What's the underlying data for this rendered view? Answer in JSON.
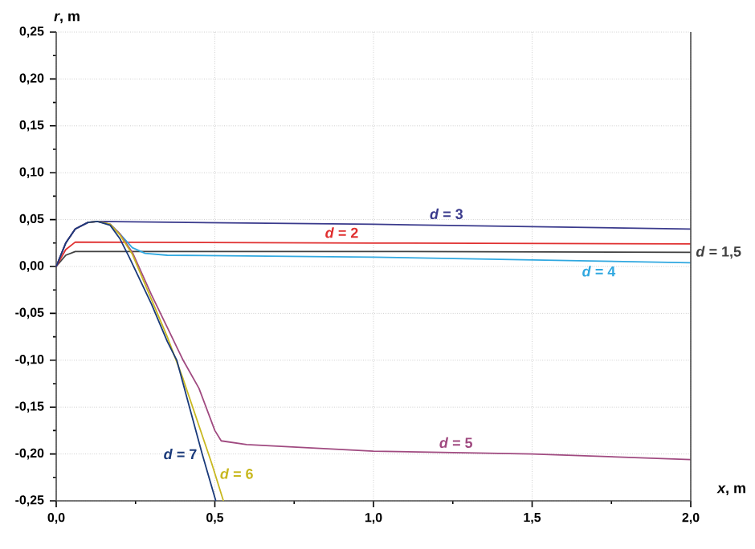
{
  "chart_data": {
    "type": "line",
    "xlabel": "*x*, m",
    "ylabel": "*r*, m",
    "xlim": [
      0,
      2.0
    ],
    "ylim": [
      -0.25,
      0.25
    ],
    "xticks": [
      {
        "value": 0,
        "label": "0,0"
      },
      {
        "value": 0.5,
        "label": "0,5"
      },
      {
        "value": 1.0,
        "label": "1,0"
      },
      {
        "value": 1.5,
        "label": "1,5"
      },
      {
        "value": 2.0,
        "label": "2,0"
      }
    ],
    "yticks": [
      {
        "value": -0.25,
        "label": "-0,25"
      },
      {
        "value": -0.2,
        "label": "-0,20"
      },
      {
        "value": -0.15,
        "label": "-0,15"
      },
      {
        "value": -0.1,
        "label": "-0,10"
      },
      {
        "value": -0.05,
        "label": "-0,05"
      },
      {
        "value": 0,
        "label": "0,00"
      },
      {
        "value": 0.05,
        "label": "0,05"
      },
      {
        "value": 0.1,
        "label": "0,10"
      },
      {
        "value": 0.15,
        "label": "0,15"
      },
      {
        "value": 0.2,
        "label": "0,20"
      },
      {
        "value": 0.25,
        "label": "0,25"
      }
    ],
    "grid": true,
    "line_style": "solid",
    "marker": "none",
    "series": [
      {
        "color": "#404040",
        "x": [
          0,
          0.03,
          0.06,
          1.0,
          2.0
        ],
        "values": [
          0,
          0.012,
          0.016,
          0.016,
          0.015
        ]
      },
      {
        "color": "#e03030",
        "x": [
          0,
          0.03,
          0.06,
          1.0,
          2.0
        ],
        "values": [
          0,
          0.018,
          0.026,
          0.025,
          0.024
        ]
      },
      {
        "color": "#3a3a8c",
        "x": [
          0,
          0.03,
          0.06,
          0.1,
          0.13,
          1.0,
          2.0
        ],
        "values": [
          0,
          0.025,
          0.04,
          0.047,
          0.048,
          0.045,
          0.04
        ]
      },
      {
        "color": "#30a8e0",
        "x": [
          0.17,
          0.2,
          0.24,
          0.28,
          0.35,
          1.0,
          2.0
        ],
        "values": [
          0.045,
          0.035,
          0.02,
          0.014,
          0.012,
          0.01,
          0.004
        ]
      },
      {
        "color": "#a04a80",
        "x": [
          0,
          0.03,
          0.06,
          0.1,
          0.13,
          0.17,
          0.2,
          0.24,
          0.3,
          0.35,
          0.4,
          0.45,
          0.5,
          0.52,
          0.6,
          1.0,
          1.5,
          2.0
        ],
        "values": [
          0,
          0.025,
          0.04,
          0.047,
          0.048,
          0.045,
          0.035,
          0.015,
          -0.03,
          -0.065,
          -0.1,
          -0.13,
          -0.175,
          -0.186,
          -0.19,
          -0.197,
          -0.2,
          -0.206
        ]
      },
      {
        "color": "#c8b820",
        "x": [
          0.1,
          0.13,
          0.17,
          0.2,
          0.24,
          0.3,
          0.35,
          0.4,
          0.45,
          0.49,
          0.527
        ],
        "values": [
          0.047,
          0.048,
          0.045,
          0.034,
          0.013,
          -0.035,
          -0.075,
          -0.12,
          -0.17,
          -0.21,
          -0.25
        ]
      },
      {
        "color": "#1a3a7a",
        "x": [
          0,
          0.03,
          0.06,
          0.1,
          0.13,
          0.17,
          0.2,
          0.23,
          0.3,
          0.35,
          0.38,
          0.42,
          0.46,
          0.503
        ],
        "values": [
          0,
          0.025,
          0.04,
          0.047,
          0.048,
          0.044,
          0.03,
          0.01,
          -0.04,
          -0.08,
          -0.1,
          -0.15,
          -0.2,
          -0.25
        ]
      }
    ],
    "annotations": [
      {
        "text": "*d* = 1,5",
        "x": 2.0,
        "y": 0.015
      },
      {
        "text": "*d* = 2",
        "x": 0.9,
        "y": 0.025
      },
      {
        "text": "*d* = 3",
        "x": 1.23,
        "y": 0.045
      },
      {
        "text": "*d* = 4",
        "x": 1.71,
        "y": 0.006
      },
      {
        "text": "*d* = 5",
        "x": 1.26,
        "y": -0.199
      },
      {
        "text": "*d* = 6",
        "x": 0.5,
        "y": -0.221
      },
      {
        "text": "*d* = 7",
        "x": 0.46,
        "y": -0.2
      }
    ]
  }
}
